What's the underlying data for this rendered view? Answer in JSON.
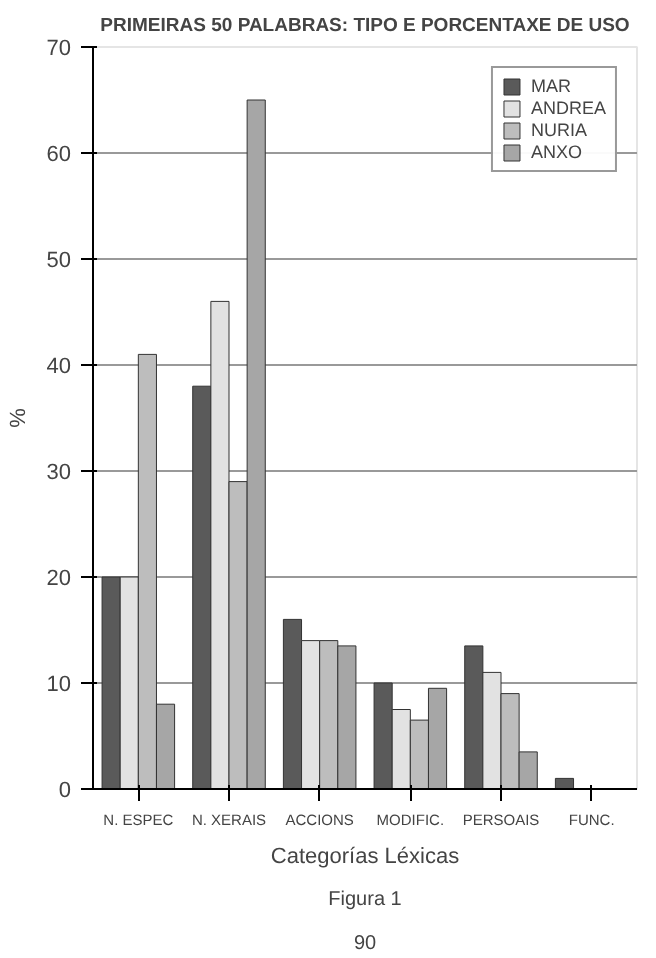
{
  "chart_data": {
    "type": "bar",
    "title": "PRIMEIRAS 50 PALABRAS: TIPO E PORCENTAXE DE USO",
    "xlabel": "Categorías Léxicas",
    "ylabel": "%",
    "categories": [
      "N. ESPEC",
      "N. XERAIS",
      "ACCIONS",
      "MODIFIC.",
      "PERSOAIS",
      "FUNC."
    ],
    "series": [
      {
        "name": "MAR",
        "color": "#5a5a5a",
        "values": [
          20,
          38,
          16,
          10,
          13.5,
          1
        ]
      },
      {
        "name": "ANDREA",
        "color": "#e2e2e2",
        "values": [
          20,
          46,
          14,
          7.5,
          11,
          null
        ]
      },
      {
        "name": "NURIA",
        "color": "#bdbdbd",
        "values": [
          41,
          29,
          14,
          6.5,
          9,
          null
        ]
      },
      {
        "name": "ANXO",
        "color": "#a6a6a6",
        "values": [
          8,
          65,
          13.5,
          9.5,
          3.5,
          null
        ]
      }
    ],
    "ylim": [
      0,
      70
    ],
    "yticks": [
      0,
      10,
      20,
      30,
      40,
      50,
      60,
      70
    ],
    "grid": "y",
    "legend": "top right",
    "annotations": [
      "Figura 1",
      "90"
    ]
  }
}
